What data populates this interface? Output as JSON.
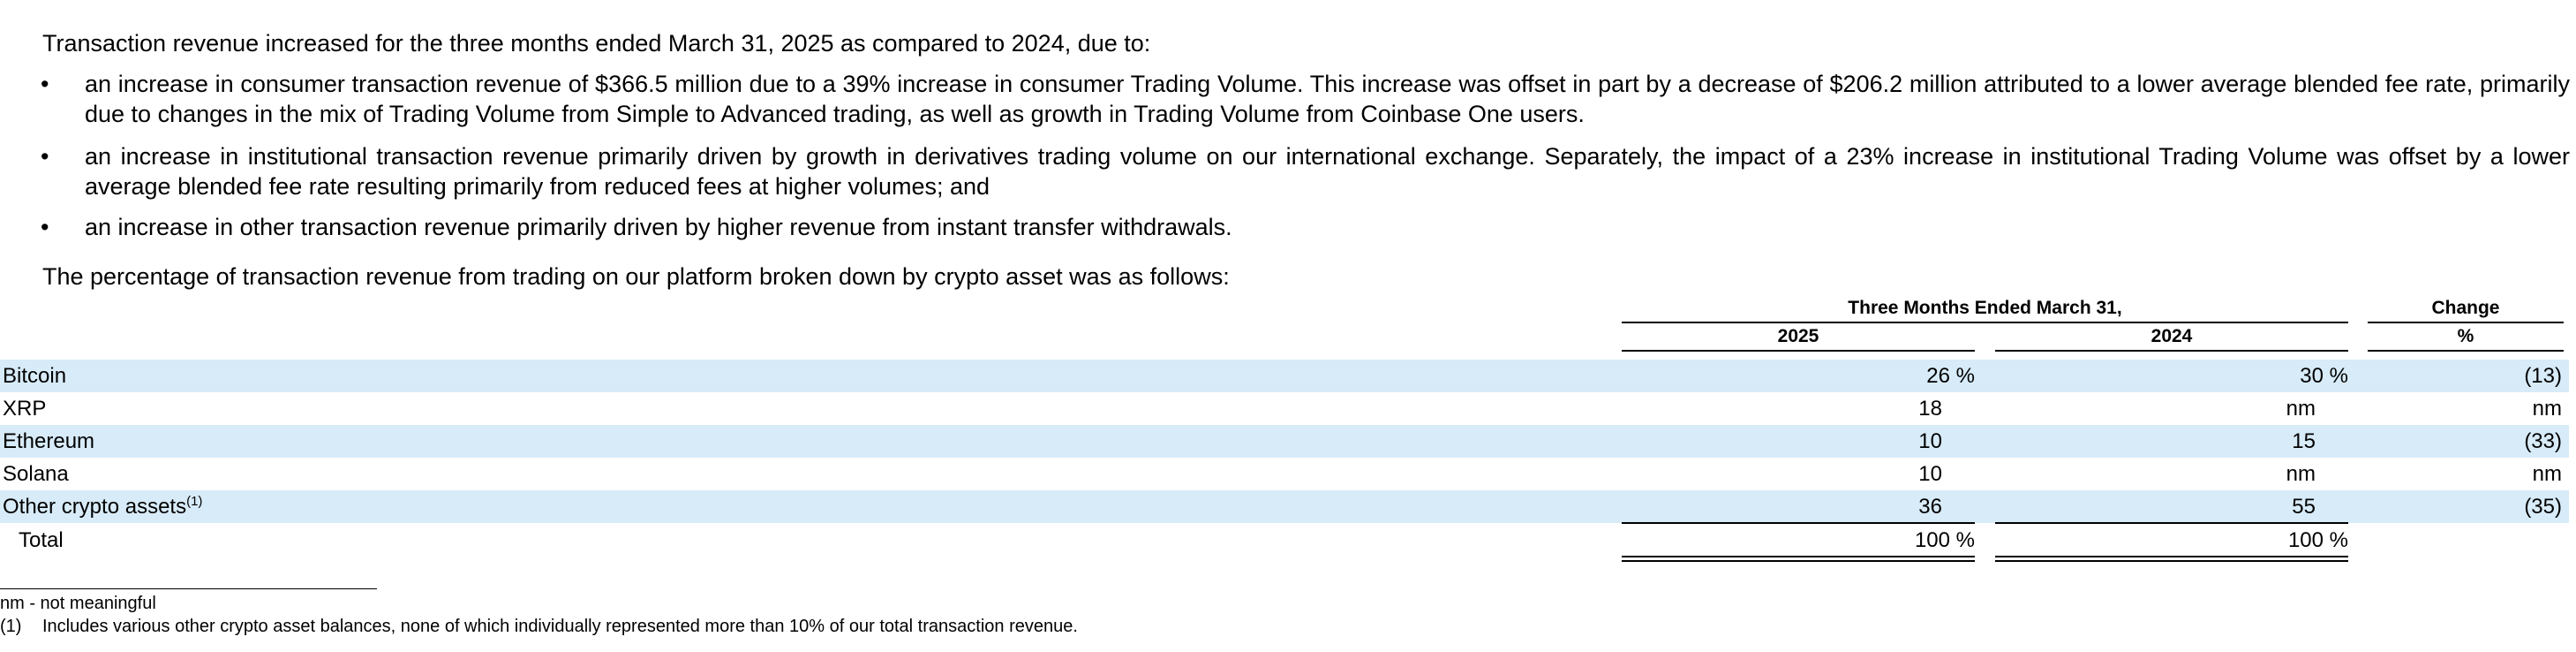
{
  "intro": "Transaction revenue increased for the three months ended March 31, 2025 as compared to 2024, due to:",
  "bullets": [
    {
      "marker": "•",
      "text": "an increase in consumer transaction revenue of $366.5 million due to a 39% increase in consumer Trading Volume. This increase was offset in part by a decrease of $206.2 million attributed to a lower average blended fee rate, primarily due to changes in the mix of Trading Volume from Simple to Advanced trading, as well as growth in Trading Volume from Coinbase One users."
    },
    {
      "marker": "•",
      "text": "an increase in institutional transaction revenue primarily driven by growth in derivatives trading volume on our international exchange. Separately, the impact of a 23% increase in institutional Trading Volume was offset by a lower average blended fee rate resulting primarily from reduced fees at higher volumes; and"
    },
    {
      "marker": "•",
      "text": "an increase in other transaction revenue primarily driven by higher revenue from instant transfer withdrawals."
    }
  ],
  "table_intro": "The percentage of transaction revenue from trading on our platform broken down by crypto asset was as follows:",
  "table": {
    "period_header": "Three Months Ended March 31,",
    "change_header": "Change",
    "col_2025": "2025",
    "col_2024": "2024",
    "col_change_unit": "%",
    "rows": [
      {
        "label": "Bitcoin",
        "footnote_ref": "",
        "v2025": "26 %",
        "v2024": "30 %",
        "change": "(13)",
        "shaded": true
      },
      {
        "label": "XRP",
        "footnote_ref": "",
        "v2025": "18",
        "v2024": "nm",
        "change": "nm",
        "shaded": false
      },
      {
        "label": "Ethereum",
        "footnote_ref": "",
        "v2025": "10",
        "v2024": "15",
        "change": "(33)",
        "shaded": true
      },
      {
        "label": "Solana",
        "footnote_ref": "",
        "v2025": "10",
        "v2024": "nm",
        "change": "nm",
        "shaded": false
      },
      {
        "label": "Other crypto assets",
        "footnote_ref": "(1)",
        "v2025": "36",
        "v2024": "55",
        "change": "(35)",
        "shaded": true
      }
    ],
    "total": {
      "label": "Total",
      "v2025": "100 %",
      "v2024": "100 %"
    },
    "shade_color": "#d7ebf8"
  },
  "footnotes": {
    "nm": "nm - not meaningful",
    "note1_marker": "(1)",
    "note1_text": "Includes various other crypto asset balances, none of which individually represented more than 10% of our total transaction revenue."
  }
}
